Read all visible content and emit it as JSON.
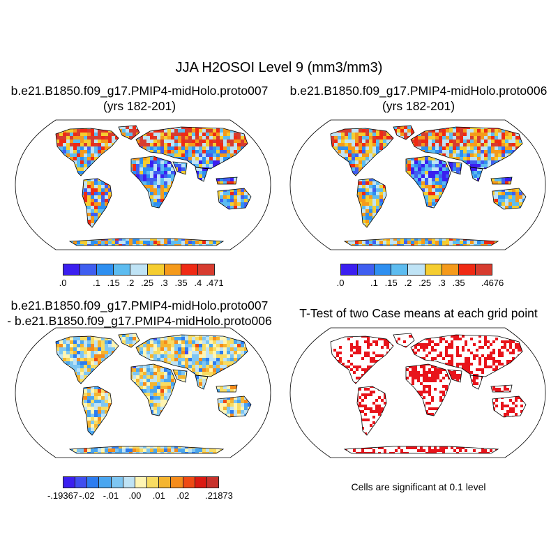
{
  "main_title": "JJA H2OSOI Level 9 (mm3/mm3)",
  "panels": [
    {
      "title_line1": "b.e21.B1850.f09_g17.PMIP4-midHolo.proto007",
      "title_line2": "(yrs 182-201)"
    },
    {
      "title_line1": "b.e21.B1850.f09_g17.PMIP4-midHolo.proto006",
      "title_line2": "(yrs 182-201)"
    },
    {
      "title_line1": "b.e21.B1850.f09_g17.PMIP4-midHolo.proto007",
      "title_line2": "- b.e21.B1850.f09_g17.PMIP4-midHolo.proto006"
    },
    {
      "title_line1": "T-Test of two Case means at each grid point",
      "title_line2": ""
    }
  ],
  "colorbars": {
    "case007": {
      "colors": [
        "#3b1ff0",
        "#3f5ef0",
        "#2e8ff0",
        "#5dbcf0",
        "#bfe3f5",
        "#f5cd30",
        "#f59a1b",
        "#ef2a14",
        "#d73c2f"
      ],
      "labels": [
        ".0",
        ".1",
        ".15",
        ".2",
        ".25",
        ".3",
        ".35",
        ".4",
        ".471"
      ],
      "label_positions": [
        0,
        2,
        3,
        4,
        5,
        6,
        7,
        8,
        9
      ]
    },
    "case006": {
      "colors": [
        "#3b1ff0",
        "#3f5ef0",
        "#2e8ff0",
        "#5dbcf0",
        "#bfe3f5",
        "#f5cd30",
        "#f59a1b",
        "#ef2a14",
        "#d73c2f"
      ],
      "labels": [
        ".0",
        ".1",
        ".15",
        ".2",
        ".25",
        ".3",
        ".35",
        ".4676"
      ],
      "label_positions": [
        0,
        2,
        3,
        4,
        5,
        6,
        7,
        9
      ]
    },
    "difference": {
      "colors": [
        "#3b1ff0",
        "#3f4ef0",
        "#2c7cf0",
        "#4aa6f0",
        "#7ec6f2",
        "#bfe3f5",
        "#fff5b4",
        "#f8dc62",
        "#f5b530",
        "#f58c1b",
        "#ef4a14",
        "#db1a12",
        "#c8322c"
      ],
      "labels": [
        "-.19367",
        "-.02",
        "-.01",
        ".00",
        ".01",
        ".02",
        ".21873"
      ],
      "label_positions": [
        0,
        2,
        4,
        6,
        8,
        10,
        13
      ]
    }
  },
  "significance_note": "Cells are significant at 0.1 level"
}
